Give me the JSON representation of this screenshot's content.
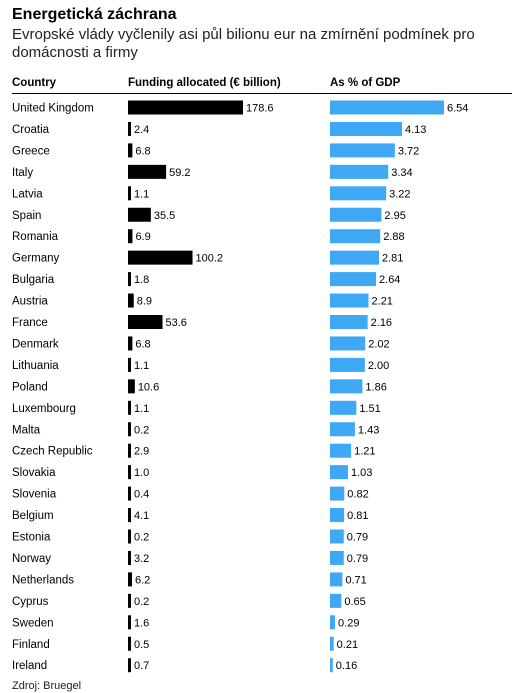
{
  "header": {
    "title": "Energetická záchrana",
    "subtitle": "Evropské vlády vyčlenily asi půl bilionu eur na zmírnění podmínek pro domácnosti a firmy"
  },
  "columns": {
    "country": "Country",
    "funding": "Funding allocated (€ billion)",
    "gdp": "As % of GDP"
  },
  "source": "Zdroj: Bruegel",
  "colors": {
    "funding_bar": "#000000",
    "gdp_bar": "#3ea8f5"
  },
  "chart_data": {
    "type": "bar",
    "categories": [
      "United Kingdom",
      "Croatia",
      "Greece",
      "Italy",
      "Latvia",
      "Spain",
      "Romania",
      "Germany",
      "Bulgaria",
      "Austria",
      "France",
      "Denmark",
      "Lithuania",
      "Poland",
      "Luxembourg",
      "Malta",
      "Czech Republic",
      "Slovakia",
      "Slovenia",
      "Belgium",
      "Estonia",
      "Norway",
      "Netherlands",
      "Cyprus",
      "Sweden",
      "Finland",
      "Ireland"
    ],
    "series": [
      {
        "name": "Funding allocated (€ billion)",
        "values": [
          178.6,
          2.4,
          6.8,
          59.2,
          1.1,
          35.5,
          6.9,
          100.2,
          1.8,
          8.9,
          53.6,
          6.8,
          1.1,
          10.6,
          1.1,
          0.2,
          2.9,
          1.0,
          0.4,
          4.1,
          0.2,
          3.2,
          6.2,
          0.2,
          1.6,
          0.5,
          0.7
        ],
        "labels": [
          "178.6",
          "2.4",
          "6.8",
          "59.2",
          "1.1",
          "35.5",
          "6.9",
          "100.2",
          "1.8",
          "8.9",
          "53.6",
          "6.8",
          "1.1",
          "10.6",
          "1.1",
          "0.2",
          "2.9",
          "1.0",
          "0.4",
          "4.1",
          "0.2",
          "3.2",
          "6.2",
          "0.2",
          "1.6",
          "0.5",
          "0.7"
        ]
      },
      {
        "name": "As % of GDP",
        "values": [
          6.54,
          4.13,
          3.72,
          3.34,
          3.22,
          2.95,
          2.88,
          2.81,
          2.64,
          2.21,
          2.16,
          2.02,
          2.0,
          1.86,
          1.51,
          1.43,
          1.21,
          1.03,
          0.82,
          0.81,
          0.79,
          0.79,
          0.71,
          0.65,
          0.29,
          0.21,
          0.16
        ],
        "labels": [
          "6.54",
          "4.13",
          "3.72",
          "3.34",
          "3.22",
          "2.95",
          "2.88",
          "2.81",
          "2.64",
          "2.21",
          "2.16",
          "2.02",
          "2.00",
          "1.86",
          "1.51",
          "1.43",
          "1.21",
          "1.03",
          "0.82",
          "0.81",
          "0.79",
          "0.79",
          "0.71",
          "0.65",
          "0.29",
          "0.21",
          "0.16"
        ]
      }
    ]
  }
}
